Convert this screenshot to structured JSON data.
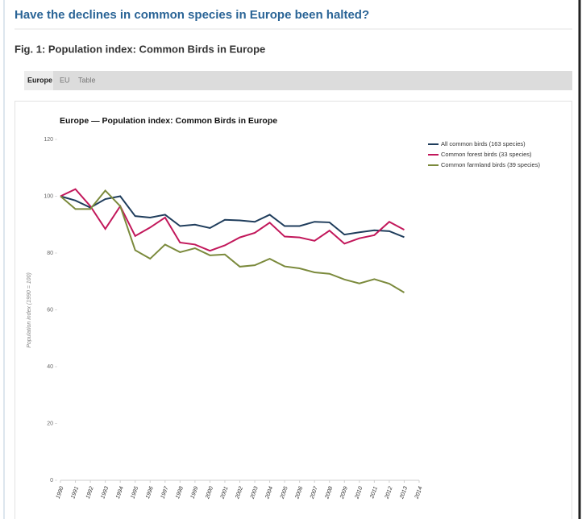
{
  "page": {
    "title": "Have the declines in common species in Europe been halted?",
    "figure_title": "Fig. 1: Population index: Common Birds in Europe",
    "tabs": [
      "Europe",
      "EU",
      "Table"
    ]
  },
  "chart_data": {
    "type": "line",
    "title": "Europe — Population index: Common Birds in Europe",
    "y_label": "Population index (1990 = 100)",
    "categories": [
      "1990",
      "1991",
      "1992",
      "1993",
      "1994",
      "1995",
      "1996",
      "1997",
      "1998",
      "1999",
      "2000",
      "2001",
      "2002",
      "2003",
      "2004",
      "2005",
      "2006",
      "2007",
      "2008",
      "2009",
      "2010",
      "2011",
      "2012",
      "2013",
      "2014"
    ],
    "series": [
      {
        "name": "All common birds (163 species)",
        "color": "#1f3d5c",
        "values": [
          100,
          98.5,
          96,
          99,
          100,
          93,
          92.5,
          93.5,
          89.5,
          90,
          88.8,
          91.7,
          91.5,
          91,
          93.5,
          89.5,
          89.5,
          91,
          90.8,
          86.5,
          87.3,
          88,
          87.7,
          85.6,
          null
        ]
      },
      {
        "name": "Common forest birds (33 species)",
        "color": "#c2185b",
        "values": [
          100,
          102.5,
          96.5,
          88.5,
          96.5,
          86,
          89,
          92.5,
          83.7,
          83,
          80.8,
          82.7,
          85.5,
          87.1,
          90.7,
          85.8,
          85.5,
          84.3,
          87.9,
          83.3,
          85.2,
          86.3,
          91,
          88.2,
          null
        ]
      },
      {
        "name": "Common farmland birds (39 species)",
        "color": "#7b8a3c",
        "values": [
          100,
          95.5,
          95.5,
          102,
          96.5,
          81,
          78,
          83,
          80.3,
          81.7,
          79.2,
          79.5,
          75.2,
          75.7,
          78,
          75.3,
          74.6,
          73.2,
          72.7,
          70.7,
          69.3,
          70.8,
          69.2,
          66.1,
          null
        ]
      }
    ],
    "ylim": [
      0,
      120
    ],
    "yticks": [
      0,
      20,
      40,
      60,
      80,
      100,
      120
    ],
    "legend": "top-right"
  }
}
